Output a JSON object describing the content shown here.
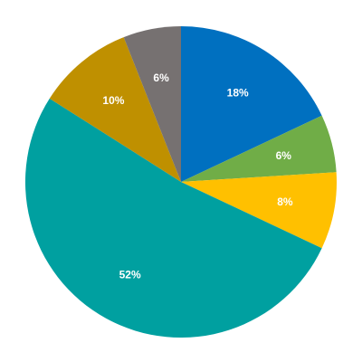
{
  "chart_data": {
    "type": "pie",
    "start": "12 o'clock",
    "direction": "clockwise",
    "legend": "none",
    "slices": [
      {
        "value": 18,
        "label": "18%",
        "color": "#0070C0"
      },
      {
        "value": 6,
        "label": "6%",
        "color": "#70AD47"
      },
      {
        "value": 8,
        "label": "8%",
        "color": "#FFC000"
      },
      {
        "value": 52,
        "label": "52%",
        "color": "#00A0A0"
      },
      {
        "value": 10,
        "label": "10%",
        "color": "#BF9000"
      },
      {
        "value": 6,
        "label": "6%",
        "color": "#767171"
      }
    ]
  }
}
